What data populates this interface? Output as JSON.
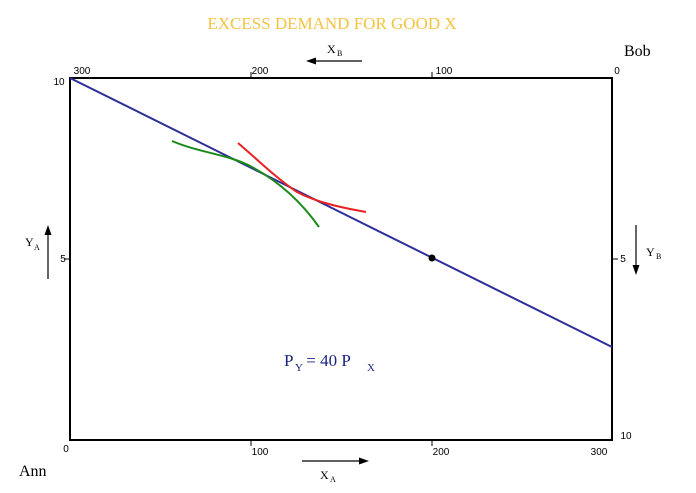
{
  "title": "EXCESS DEMAND FOR GOOD X",
  "corners": {
    "bottom_left": "Ann",
    "top_right": "Bob"
  },
  "axes": {
    "bottom_ticks": [
      "0",
      "100",
      "200",
      "300"
    ],
    "top_ticks": [
      "300",
      "200",
      "100",
      "0"
    ],
    "left_ticks": [
      "10",
      "5"
    ],
    "right_ticks": [
      "5",
      "10"
    ],
    "x_a": {
      "main": "X",
      "sub": "A"
    },
    "x_b": {
      "main": "X",
      "sub": "B"
    },
    "y_a": {
      "main": "Y",
      "sub": "A"
    },
    "y_b": {
      "main": "Y",
      "sub": "B"
    }
  },
  "price_label": {
    "p1": "P",
    "s1": "Y",
    "eq": " = 40 P",
    "s2": "X"
  },
  "colors": {
    "budget_line": "#2e2e9a",
    "ann_curve": "#1a8a1a",
    "bob_curve": "#e82020",
    "box": "#000000",
    "title": "#f5c242"
  }
}
